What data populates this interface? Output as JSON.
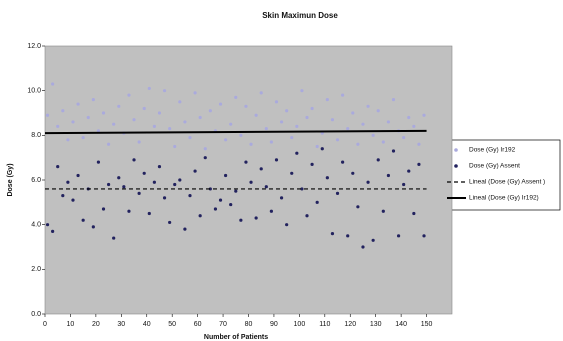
{
  "chart_data": {
    "type": "scatter",
    "title": "Skin Maximun Dose",
    "x_label": "Number of Patients",
    "y_label": "Dose (Gy)",
    "xlim": [
      0,
      160
    ],
    "xticks": [
      0,
      10,
      20,
      30,
      40,
      50,
      60,
      70,
      80,
      90,
      100,
      110,
      120,
      130,
      140,
      150
    ],
    "ylim": [
      0,
      12
    ],
    "yticks": [
      {
        "value": 0,
        "label": "0.0"
      },
      {
        "value": 2,
        "label": "2.0"
      },
      {
        "value": 4,
        "label": "4.0"
      },
      {
        "value": 6,
        "label": "6.0"
      },
      {
        "value": 8,
        "label": "8.0"
      },
      {
        "value": 10,
        "label": "10.0"
      },
      {
        "value": 12,
        "label": "12.0"
      }
    ],
    "legend": "right",
    "series": [
      {
        "name": "Dose (Gy) Ir192",
        "type": "scatter",
        "color": "#aaaadd",
        "x": [
          1,
          3,
          5,
          7,
          9,
          11,
          13,
          15,
          17,
          19,
          21,
          23,
          25,
          27,
          29,
          31,
          33,
          35,
          37,
          39,
          41,
          43,
          45,
          47,
          49,
          51,
          53,
          55,
          57,
          59,
          61,
          63,
          65,
          67,
          69,
          71,
          73,
          75,
          77,
          79,
          81,
          83,
          85,
          87,
          89,
          91,
          93,
          95,
          97,
          99,
          101,
          103,
          105,
          107,
          109,
          111,
          113,
          115,
          117,
          119,
          121,
          123,
          125,
          127,
          129,
          131,
          133,
          135,
          137,
          139,
          141,
          143,
          145,
          147,
          149
        ],
        "values": [
          8.9,
          10.3,
          8.4,
          9.1,
          7.8,
          8.6,
          9.4,
          7.9,
          8.8,
          9.6,
          8.2,
          9.0,
          7.6,
          8.5,
          9.3,
          8.1,
          9.8,
          8.7,
          7.7,
          9.2,
          10.1,
          8.4,
          9.0,
          10.0,
          8.3,
          7.5,
          9.5,
          8.6,
          7.9,
          9.9,
          8.8,
          7.4,
          9.1,
          8.2,
          9.4,
          7.8,
          8.5,
          9.7,
          8.0,
          9.3,
          7.6,
          8.9,
          9.9,
          8.3,
          7.7,
          9.5,
          8.6,
          9.1,
          7.9,
          8.4,
          10.0,
          8.8,
          9.2,
          7.5,
          8.1,
          9.6,
          8.7,
          7.8,
          9.8,
          8.3,
          9.0,
          7.6,
          8.5,
          9.3,
          8.0,
          9.1,
          7.7,
          8.6,
          9.6,
          8.2,
          7.9,
          8.8,
          8.4,
          7.6,
          8.9
        ]
      },
      {
        "name": "Dose (Gy) Assent",
        "type": "scatter",
        "color": "#22225e",
        "x": [
          1,
          3,
          5,
          7,
          9,
          11,
          13,
          15,
          17,
          19,
          21,
          23,
          25,
          27,
          29,
          31,
          33,
          35,
          37,
          39,
          41,
          43,
          45,
          47,
          49,
          51,
          53,
          55,
          57,
          59,
          61,
          63,
          65,
          67,
          69,
          71,
          73,
          75,
          77,
          79,
          81,
          83,
          85,
          87,
          89,
          91,
          93,
          95,
          97,
          99,
          101,
          103,
          105,
          107,
          109,
          111,
          113,
          115,
          117,
          119,
          121,
          123,
          125,
          127,
          129,
          131,
          133,
          135,
          137,
          139,
          141,
          143,
          145,
          147,
          149
        ],
        "values": [
          4.0,
          3.7,
          6.6,
          5.3,
          5.9,
          5.1,
          6.2,
          4.2,
          5.6,
          3.9,
          6.8,
          4.7,
          5.8,
          3.4,
          6.1,
          5.7,
          4.6,
          6.9,
          5.4,
          6.3,
          4.5,
          5.9,
          6.6,
          5.2,
          4.1,
          5.8,
          6.0,
          3.8,
          5.3,
          6.4,
          4.4,
          7.0,
          5.6,
          4.7,
          5.1,
          6.2,
          4.9,
          5.5,
          4.2,
          6.8,
          5.9,
          4.3,
          6.5,
          5.7,
          4.6,
          6.9,
          5.2,
          4.0,
          6.3,
          7.2,
          5.6,
          4.4,
          6.7,
          5.0,
          7.4,
          6.1,
          3.6,
          5.4,
          6.8,
          3.5,
          6.3,
          4.8,
          3.0,
          5.9,
          3.3,
          6.9,
          4.6,
          6.2,
          7.3,
          3.5,
          5.8,
          6.4,
          4.5,
          6.7,
          3.5
        ]
      },
      {
        "name": "Lineal (Dose (Gy) Assent )",
        "type": "line",
        "style": "dashed",
        "color": "#000000",
        "x": [
          0,
          150
        ],
        "values": [
          5.6,
          5.6
        ]
      },
      {
        "name": "Lineal (Dose (Gy) Ir192)",
        "type": "line",
        "style": "solid",
        "color": "#000000",
        "x": [
          0,
          150
        ],
        "values": [
          8.1,
          8.2
        ]
      }
    ]
  }
}
